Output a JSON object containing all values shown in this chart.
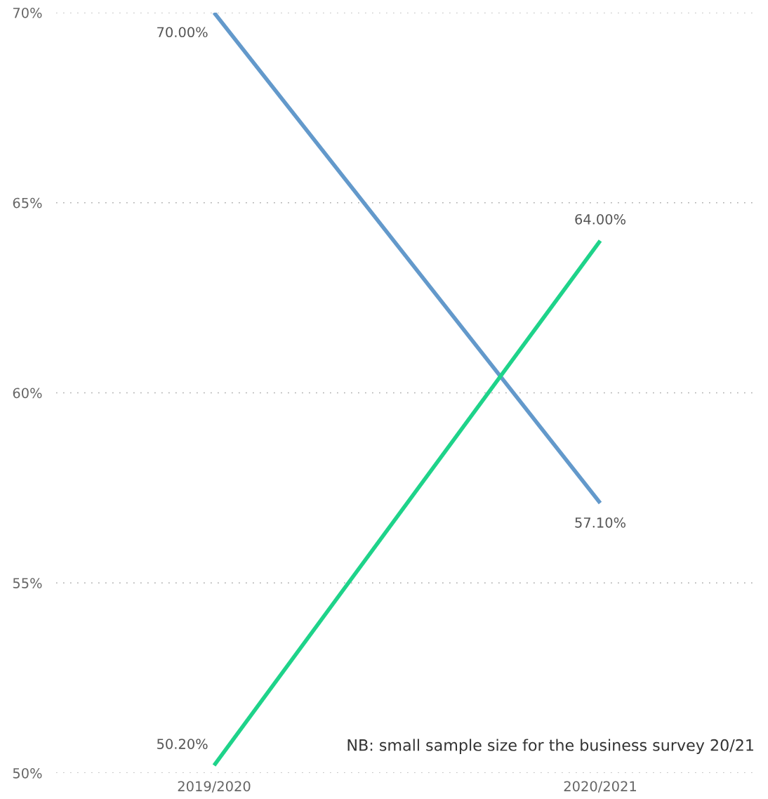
{
  "chart_data": {
    "type": "line",
    "categories": [
      "2019/2020",
      "2020/2021"
    ],
    "series": [
      {
        "color": "#6399cb",
        "values": [
          70.0,
          57.1
        ],
        "value_labels": [
          "70.00%",
          "57.10%"
        ]
      },
      {
        "color": "#1ed38a",
        "values": [
          50.2,
          64.0
        ],
        "value_labels": [
          "50.20%",
          "64.00%"
        ]
      }
    ],
    "ylim": [
      50,
      70
    ],
    "yticks": [
      {
        "value": 50,
        "label": "50%"
      },
      {
        "value": 55,
        "label": "55%"
      },
      {
        "value": 60,
        "label": "60%"
      },
      {
        "value": 65,
        "label": "65%"
      },
      {
        "value": 70,
        "label": "70%"
      }
    ],
    "grid": "y",
    "marker": "none",
    "line_style": "solid",
    "annotations": [
      "NB: small sample size for the business survey 20/21"
    ]
  }
}
